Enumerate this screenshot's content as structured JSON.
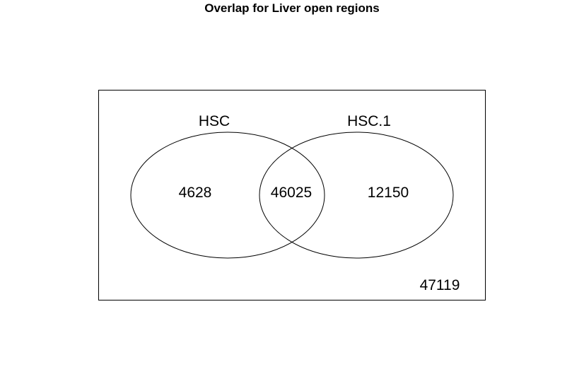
{
  "title": "Overlap for Liver open regions",
  "sets": [
    {
      "name": "HSC",
      "only_count": "4628"
    },
    {
      "name": "HSC.1",
      "only_count": "12150"
    }
  ],
  "intersection_count": "46025",
  "outside_count": "47119",
  "colors": {
    "background": "#ffffff",
    "stroke": "#000000",
    "text": "#000000"
  }
}
